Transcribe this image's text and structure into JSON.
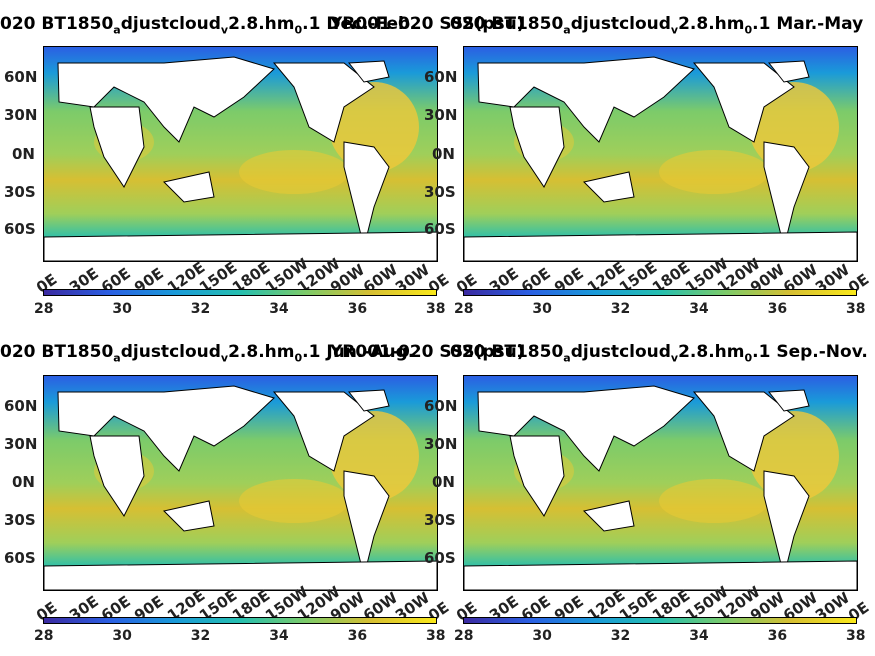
{
  "panels": [
    {
      "id": "tl",
      "title_pre": "020 BT1850",
      "title_sub1": "a",
      "title_mid": "djustcloud",
      "title_sub2": "v",
      "title_post1": "2.8.hm",
      "title_sub3": "0",
      "title_post2": ".1 Dec.-Feb."
    },
    {
      "id": "tr",
      "title_pre": "YR001-020 SSS(psu)",
      "title_sub1": "",
      "title_mid": "",
      "title_sub2": "",
      "title_post1": "",
      "title_sub3": "",
      "title_post2": ""
    },
    {
      "id": "tr2",
      "title_pre": "020 BT1850",
      "title_sub1": "a",
      "title_mid": "djustcloud",
      "title_sub2": "v",
      "title_post1": "2.8.hm",
      "title_sub3": "0",
      "title_post2": ".1 Mar.-May"
    },
    {
      "id": "bl",
      "title_pre": "020 BT1850",
      "title_sub1": "a",
      "title_mid": "djustcloud",
      "title_sub2": "v",
      "title_post1": "2.8.hm",
      "title_sub3": "0",
      "title_post2": ".1 Jun.-Aug."
    },
    {
      "id": "br",
      "title_pre": "020 BT1850",
      "title_sub1": "a",
      "title_mid": "djustcloud",
      "title_sub2": "v",
      "title_post1": "2.8.hm",
      "title_sub3": "0",
      "title_post2": ".1 Sep.-Nov."
    }
  ],
  "header_overlap_top": "YR001-020 SSS(psu)",
  "header_overlap_bottom": "YR001-020 SSS(psu)",
  "y_ticks": [
    "60N",
    "30N",
    "0N",
    "30S",
    "60S"
  ],
  "x_ticks": [
    "0E",
    "30E",
    "60E",
    "90E",
    "120E",
    "150E",
    "180E",
    "150W",
    "120W",
    "90W",
    "60W",
    "30W",
    "0E"
  ],
  "colorbar_ticks": [
    "28",
    "30",
    "32",
    "34",
    "36",
    "38"
  ],
  "colors": {
    "ocean_low": "#3b2aa0",
    "ocean_mid": "#26bfb0",
    "ocean_high": "#f9e81a",
    "land": "#ffffff"
  }
}
